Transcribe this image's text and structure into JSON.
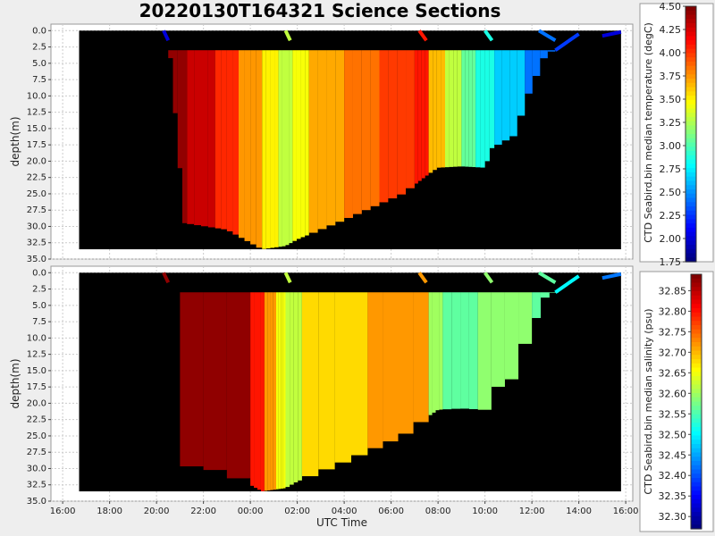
{
  "title": "20220130T164321 Science Sections",
  "chart_data": [
    {
      "type": "heatmap",
      "name": "temperature-section",
      "xlabel": "",
      "ylabel": "depth(m)",
      "y_ticks": [
        "0.0",
        "2.5",
        "5.0",
        "7.5",
        "10.0",
        "12.5",
        "15.0",
        "17.5",
        "20.0",
        "22.5",
        "25.0",
        "27.5",
        "30.0",
        "32.5",
        "35.0"
      ],
      "ylim": [
        35.0,
        -1.0
      ],
      "y_inverted": true,
      "xlim": [
        -0.5,
        24.3
      ],
      "grid": true,
      "colorbar": {
        "label": "CTD Seabird.bin median temperature (degC)",
        "ticks": [
          "4.50",
          "4.25",
          "4.00",
          "3.75",
          "3.50",
          "3.25",
          "3.00",
          "2.75",
          "2.50",
          "2.25",
          "2.00",
          "1.75"
        ],
        "range": [
          1.75,
          4.5
        ]
      },
      "bottom_profile": [
        [
          0.7,
          33.5
        ],
        [
          23.8,
          33.5
        ]
      ],
      "profiles_max_depth": [
        [
          4.5,
          0.0
        ],
        [
          5.2,
          29.5
        ],
        [
          7.0,
          30.5
        ],
        [
          8.5,
          33.5
        ],
        [
          9.5,
          33.0
        ],
        [
          10.0,
          32.0
        ],
        [
          12.0,
          29.0
        ],
        [
          14.5,
          25.0
        ],
        [
          15.6,
          22.0
        ],
        [
          16.0,
          21.0
        ],
        [
          17.0,
          20.8
        ],
        [
          18.0,
          21.0
        ],
        [
          18.3,
          18.0
        ],
        [
          19.3,
          16.0
        ],
        [
          19.7,
          11.0
        ],
        [
          20.6,
          3.5
        ],
        [
          21.0,
          3.0
        ],
        [
          22.0,
          0.5
        ],
        [
          23.8,
          0.5
        ]
      ],
      "color_segments": [
        {
          "x0": 4.5,
          "x1": 5.3,
          "value": 4.45
        },
        {
          "x0": 5.3,
          "x1": 6.5,
          "value": 4.3
        },
        {
          "x0": 6.5,
          "x1": 7.5,
          "value": 4.05
        },
        {
          "x0": 7.5,
          "x1": 8.5,
          "value": 3.75
        },
        {
          "x0": 8.5,
          "x1": 9.2,
          "value": 3.5
        },
        {
          "x0": 9.2,
          "x1": 9.8,
          "value": 3.3
        },
        {
          "x0": 9.8,
          "x1": 10.5,
          "value": 3.45
        },
        {
          "x0": 10.5,
          "x1": 12.0,
          "value": 3.7
        },
        {
          "x0": 12.0,
          "x1": 13.5,
          "value": 3.85
        },
        {
          "x0": 13.5,
          "x1": 15.0,
          "value": 4.0
        },
        {
          "x0": 15.0,
          "x1": 15.6,
          "value": 4.1
        },
        {
          "x0": 15.6,
          "x1": 16.3,
          "value": 3.65
        },
        {
          "x0": 16.3,
          "x1": 17.0,
          "value": 3.3
        },
        {
          "x0": 17.0,
          "x1": 17.6,
          "value": 3.05
        },
        {
          "x0": 17.6,
          "x1": 18.4,
          "value": 2.85
        },
        {
          "x0": 18.4,
          "x1": 19.7,
          "value": 2.65
        },
        {
          "x0": 19.7,
          "x1": 21.0,
          "value": 2.4
        },
        {
          "x0": 21.0,
          "x1": 22.0,
          "value": 2.25
        },
        {
          "x0": 22.0,
          "x1": 23.8,
          "value": 2.0
        }
      ]
    },
    {
      "type": "heatmap",
      "name": "salinity-section",
      "xlabel": "UTC Time",
      "ylabel": "depth(m)",
      "x_ticks": [
        "16:00",
        "18:00",
        "20:00",
        "22:00",
        "00:00",
        "02:00",
        "04:00",
        "06:00",
        "08:00",
        "10:00",
        "12:00",
        "14:00",
        "16:00"
      ],
      "y_ticks": [
        "0.0",
        "2.5",
        "5.0",
        "7.5",
        "10.0",
        "12.5",
        "15.0",
        "17.5",
        "20.0",
        "22.5",
        "25.0",
        "27.5",
        "30.0",
        "32.5",
        "35.0"
      ],
      "ylim": [
        35.0,
        -1.0
      ],
      "y_inverted": true,
      "xlim": [
        -0.5,
        24.3
      ],
      "grid": true,
      "colorbar": {
        "label": "CTD Seabird.bin median salinity (psu)",
        "ticks": [
          "32.85",
          "32.80",
          "32.75",
          "32.70",
          "32.65",
          "32.60",
          "32.55",
          "32.50",
          "32.45",
          "32.40",
          "32.35",
          "32.30"
        ],
        "range": [
          32.27,
          32.89
        ]
      },
      "color_segments": [
        {
          "x0": 4.0,
          "x1": 8.0,
          "value": 32.88
        },
        {
          "x0": 8.0,
          "x1": 8.6,
          "value": 32.8
        },
        {
          "x0": 8.6,
          "x1": 9.1,
          "value": 32.72
        },
        {
          "x0": 9.1,
          "x1": 9.5,
          "value": 32.65
        },
        {
          "x0": 9.5,
          "x1": 10.2,
          "value": 32.62
        },
        {
          "x0": 10.2,
          "x1": 13.0,
          "value": 32.68
        },
        {
          "x0": 13.0,
          "x1": 15.6,
          "value": 32.72
        },
        {
          "x0": 15.6,
          "x1": 16.2,
          "value": 32.6
        },
        {
          "x0": 16.2,
          "x1": 17.7,
          "value": 32.56
        },
        {
          "x0": 17.7,
          "x1": 20.0,
          "value": 32.59
        },
        {
          "x0": 20.0,
          "x1": 21.5,
          "value": 32.56
        },
        {
          "x0": 21.5,
          "x1": 22.5,
          "value": 32.5
        },
        {
          "x0": 22.5,
          "x1": 23.8,
          "value": 32.42
        }
      ]
    }
  ],
  "colors": {
    "background": "#eeeeee",
    "plot_bg": "#ffffff",
    "data_bg": "#000000"
  }
}
